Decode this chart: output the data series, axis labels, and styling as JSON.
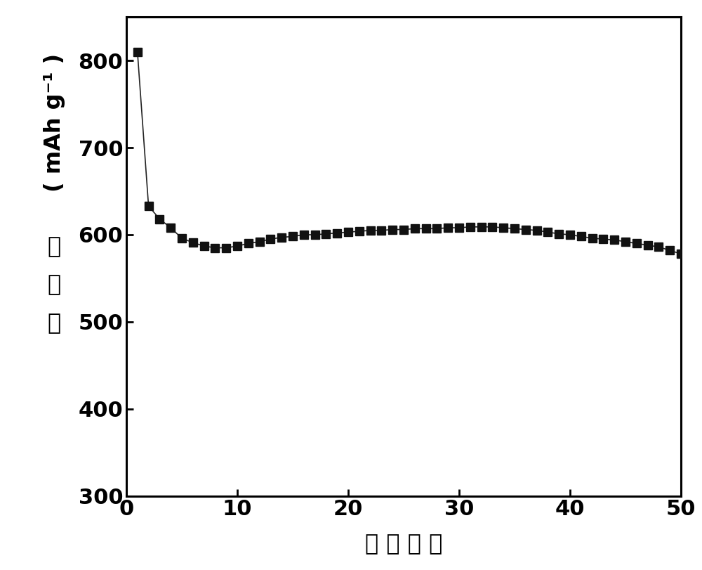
{
  "x": [
    1,
    2,
    3,
    4,
    5,
    6,
    7,
    8,
    9,
    10,
    11,
    12,
    13,
    14,
    15,
    16,
    17,
    18,
    19,
    20,
    21,
    22,
    23,
    24,
    25,
    26,
    27,
    28,
    29,
    30,
    31,
    32,
    33,
    34,
    35,
    36,
    37,
    38,
    39,
    40,
    41,
    42,
    43,
    44,
    45,
    46,
    47,
    48,
    49,
    50
  ],
  "y": [
    810,
    633,
    618,
    608,
    596,
    591,
    587,
    585,
    585,
    587,
    590,
    592,
    595,
    597,
    598,
    600,
    600,
    601,
    602,
    603,
    604,
    605,
    605,
    606,
    606,
    607,
    607,
    607,
    608,
    608,
    609,
    609,
    609,
    608,
    607,
    606,
    605,
    603,
    601,
    600,
    598,
    596,
    595,
    594,
    592,
    590,
    588,
    586,
    582,
    578
  ],
  "xlabel": "循 环 次 数",
  "ylabel_unit": "( mAh g⁻¹ )",
  "ylabel_chinese": "比容量",
  "xlim": [
    0,
    50
  ],
  "ylim": [
    300,
    850
  ],
  "xticks": [
    0,
    10,
    20,
    30,
    40,
    50
  ],
  "yticks": [
    300,
    400,
    500,
    600,
    700,
    800
  ],
  "line_color": "#222222",
  "marker_color": "#111111",
  "marker": "s",
  "marker_size": 8,
  "linewidth": 1.2,
  "background_color": "#ffffff",
  "tick_fontsize": 22,
  "label_fontsize": 23,
  "chinese_fontsize": 23
}
